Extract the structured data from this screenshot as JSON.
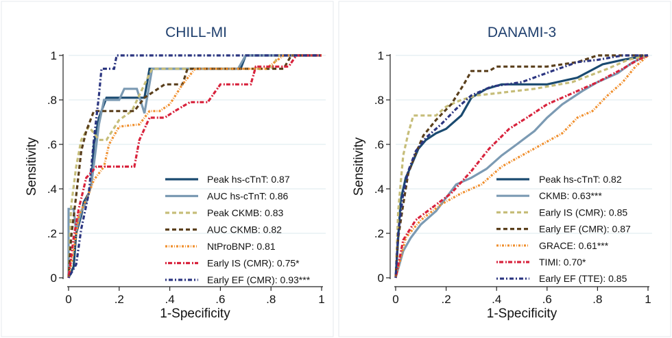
{
  "chart_data": [
    {
      "type": "line",
      "title": "CHILL-MI",
      "xlabel": "1-Specificity",
      "ylabel": "Sensitivity",
      "xlim": [
        0,
        1
      ],
      "ylim": [
        0,
        1
      ],
      "xticks": [
        "0",
        ".2",
        ".4",
        ".6",
        ".8",
        "1"
      ],
      "yticks": [
        "0",
        ".2",
        ".4",
        ".6",
        ".8",
        "1"
      ],
      "grid": "horizontal",
      "legend_position": "bottom-right",
      "series": [
        {
          "name": "Peak hs-cTnT: 0.87",
          "color": "#1a4a70",
          "dash": "solid",
          "points": [
            [
              0,
              0
            ],
            [
              0.02,
              0.05
            ],
            [
              0.03,
              0.2
            ],
            [
              0.05,
              0.28
            ],
            [
              0.06,
              0.34
            ],
            [
              0.08,
              0.38
            ],
            [
              0.09,
              0.42
            ],
            [
              0.1,
              0.6
            ],
            [
              0.12,
              0.72
            ],
            [
              0.15,
              0.81
            ],
            [
              0.19,
              0.81
            ],
            [
              0.22,
              0.81
            ],
            [
              0.25,
              0.81
            ],
            [
              0.3,
              0.81
            ],
            [
              0.32,
              0.94
            ],
            [
              0.55,
              0.94
            ],
            [
              0.58,
              0.94
            ],
            [
              0.68,
              0.94
            ],
            [
              0.7,
              1
            ],
            [
              1,
              1
            ]
          ]
        },
        {
          "name": "AUC hs-cTnT: 0.86",
          "color": "#7b9ab3",
          "dash": "solid",
          "points": [
            [
              0,
              0
            ],
            [
              0,
              0.31
            ],
            [
              0.02,
              0.31
            ],
            [
              0.03,
              0.21
            ],
            [
              0.05,
              0.3
            ],
            [
              0.07,
              0.34
            ],
            [
              0.09,
              0.42
            ],
            [
              0.12,
              0.69
            ],
            [
              0.14,
              0.8
            ],
            [
              0.2,
              0.8
            ],
            [
              0.22,
              0.85
            ],
            [
              0.27,
              0.85
            ],
            [
              0.3,
              0.74
            ],
            [
              0.33,
              0.94
            ],
            [
              0.67,
              0.94
            ],
            [
              0.7,
              1
            ],
            [
              1,
              1
            ]
          ]
        },
        {
          "name": "Peak CKMB: 0.83",
          "color": "#c6bd79",
          "dash": "6,4",
          "points": [
            [
              0,
              0
            ],
            [
              0.01,
              0.32
            ],
            [
              0.03,
              0.5
            ],
            [
              0.05,
              0.62
            ],
            [
              0.08,
              0.68
            ],
            [
              0.12,
              0.62
            ],
            [
              0.15,
              0.62
            ],
            [
              0.2,
              0.71
            ],
            [
              0.25,
              0.75
            ],
            [
              0.3,
              0.87
            ],
            [
              0.33,
              0.94
            ],
            [
              0.8,
              0.94
            ],
            [
              0.83,
              1
            ],
            [
              1,
              1
            ]
          ]
        },
        {
          "name": "AUC CKMB: 0.82",
          "color": "#5a3f1c",
          "dash": "6,4",
          "points": [
            [
              0,
              0
            ],
            [
              0.01,
              0.18
            ],
            [
              0.03,
              0.37
            ],
            [
              0.05,
              0.57
            ],
            [
              0.07,
              0.66
            ],
            [
              0.1,
              0.75
            ],
            [
              0.18,
              0.75
            ],
            [
              0.26,
              0.75
            ],
            [
              0.3,
              0.81
            ],
            [
              0.38,
              0.87
            ],
            [
              0.45,
              0.87
            ],
            [
              0.47,
              0.94
            ],
            [
              0.85,
              0.94
            ],
            [
              0.88,
              1
            ],
            [
              1,
              1
            ]
          ]
        },
        {
          "name": "NtProBNP: 0.81",
          "color": "#f0902f",
          "dash": "3,2,1,2",
          "points": [
            [
              0,
              0
            ],
            [
              0.02,
              0.12
            ],
            [
              0.04,
              0.28
            ],
            [
              0.07,
              0.35
            ],
            [
              0.1,
              0.44
            ],
            [
              0.14,
              0.5
            ],
            [
              0.16,
              0.6
            ],
            [
              0.2,
              0.68
            ],
            [
              0.28,
              0.69
            ],
            [
              0.32,
              0.75
            ],
            [
              0.36,
              0.75
            ],
            [
              0.4,
              0.78
            ],
            [
              0.45,
              0.87
            ],
            [
              0.5,
              0.94
            ],
            [
              0.78,
              0.94
            ],
            [
              0.85,
              1
            ],
            [
              1,
              1
            ]
          ]
        },
        {
          "name": "Early IS (CMR): 0.75*",
          "color": "#d8223c",
          "dash": "2,2,6,3",
          "points": [
            [
              0,
              0
            ],
            [
              0.02,
              0.18
            ],
            [
              0.04,
              0.31
            ],
            [
              0.07,
              0.45
            ],
            [
              0.11,
              0.5
            ],
            [
              0.18,
              0.5
            ],
            [
              0.26,
              0.5
            ],
            [
              0.28,
              0.62
            ],
            [
              0.32,
              0.72
            ],
            [
              0.38,
              0.72
            ],
            [
              0.42,
              0.75
            ],
            [
              0.48,
              0.79
            ],
            [
              0.55,
              0.79
            ],
            [
              0.6,
              0.87
            ],
            [
              0.72,
              0.87
            ],
            [
              0.74,
              0.95
            ],
            [
              0.87,
              0.95
            ],
            [
              0.9,
              1
            ],
            [
              1,
              1
            ]
          ]
        },
        {
          "name": "Early EF (CMR): 0.93***",
          "color": "#2b3580",
          "dash": "2,3,6,3",
          "points": [
            [
              0,
              0
            ],
            [
              0.03,
              0.06
            ],
            [
              0.05,
              0.22
            ],
            [
              0.08,
              0.38
            ],
            [
              0.1,
              0.62
            ],
            [
              0.12,
              0.82
            ],
            [
              0.13,
              0.94
            ],
            [
              0.18,
              0.94
            ],
            [
              0.19,
              1
            ],
            [
              1,
              1
            ]
          ]
        }
      ]
    },
    {
      "type": "line",
      "title": "DANAMI-3",
      "xlabel": "1-Specificity",
      "ylabel": "Sensitivity",
      "xlim": [
        0,
        1
      ],
      "ylim": [
        0,
        1
      ],
      "xticks": [
        "0",
        ".2",
        ".4",
        ".6",
        ".8",
        "1"
      ],
      "yticks": [
        "0",
        ".2",
        ".4",
        ".6",
        ".8",
        "1"
      ],
      "grid": "horizontal",
      "legend_position": "bottom-right",
      "series": [
        {
          "name": "Peak hs-cTnT: 0.82",
          "color": "#1a4a70",
          "dash": "solid",
          "points": [
            [
              0,
              0
            ],
            [
              0.01,
              0.18
            ],
            [
              0.02,
              0.35
            ],
            [
              0.04,
              0.45
            ],
            [
              0.06,
              0.5
            ],
            [
              0.09,
              0.58
            ],
            [
              0.12,
              0.62
            ],
            [
              0.16,
              0.65
            ],
            [
              0.2,
              0.67
            ],
            [
              0.26,
              0.73
            ],
            [
              0.3,
              0.81
            ],
            [
              0.36,
              0.85
            ],
            [
              0.42,
              0.87
            ],
            [
              0.6,
              0.87
            ],
            [
              0.72,
              0.9
            ],
            [
              0.82,
              0.96
            ],
            [
              0.9,
              0.98
            ],
            [
              1,
              1
            ]
          ]
        },
        {
          "name": "CKMB: 0.63***",
          "color": "#7b9ab3",
          "dash": "solid",
          "points": [
            [
              0,
              0
            ],
            [
              0.03,
              0.12
            ],
            [
              0.06,
              0.18
            ],
            [
              0.1,
              0.24
            ],
            [
              0.16,
              0.3
            ],
            [
              0.24,
              0.42
            ],
            [
              0.3,
              0.45
            ],
            [
              0.36,
              0.49
            ],
            [
              0.42,
              0.55
            ],
            [
              0.48,
              0.6
            ],
            [
              0.55,
              0.66
            ],
            [
              0.6,
              0.72
            ],
            [
              0.66,
              0.78
            ],
            [
              0.74,
              0.84
            ],
            [
              0.8,
              0.88
            ],
            [
              0.88,
              0.92
            ],
            [
              0.94,
              0.97
            ],
            [
              1,
              1
            ]
          ]
        },
        {
          "name": "Early IS (CMR): 0.85",
          "color": "#c6bd79",
          "dash": "6,4",
          "points": [
            [
              0,
              0
            ],
            [
              0.01,
              0.3
            ],
            [
              0.03,
              0.55
            ],
            [
              0.05,
              0.65
            ],
            [
              0.07,
              0.73
            ],
            [
              0.16,
              0.73
            ],
            [
              0.2,
              0.77
            ],
            [
              0.26,
              0.8
            ],
            [
              0.32,
              0.82
            ],
            [
              0.4,
              0.83
            ],
            [
              0.55,
              0.85
            ],
            [
              0.7,
              0.88
            ],
            [
              0.84,
              0.94
            ],
            [
              0.92,
              0.98
            ],
            [
              1,
              1
            ]
          ]
        },
        {
          "name": "Early EF (CMR): 0.87",
          "color": "#5a3f1c",
          "dash": "6,4",
          "points": [
            [
              0,
              0
            ],
            [
              0.01,
              0.18
            ],
            [
              0.03,
              0.33
            ],
            [
              0.05,
              0.47
            ],
            [
              0.08,
              0.56
            ],
            [
              0.11,
              0.64
            ],
            [
              0.16,
              0.71
            ],
            [
              0.22,
              0.78
            ],
            [
              0.27,
              0.87
            ],
            [
              0.3,
              0.93
            ],
            [
              0.37,
              0.93
            ],
            [
              0.4,
              0.95
            ],
            [
              0.6,
              0.95
            ],
            [
              0.72,
              0.97
            ],
            [
              0.8,
              1
            ],
            [
              1,
              1
            ]
          ]
        },
        {
          "name": "GRACE: 0.61***",
          "color": "#f0902f",
          "dash": "3,2,1,2",
          "points": [
            [
              0,
              0
            ],
            [
              0.04,
              0.18
            ],
            [
              0.1,
              0.26
            ],
            [
              0.18,
              0.33
            ],
            [
              0.26,
              0.38
            ],
            [
              0.34,
              0.42
            ],
            [
              0.42,
              0.5
            ],
            [
              0.5,
              0.55
            ],
            [
              0.58,
              0.6
            ],
            [
              0.66,
              0.65
            ],
            [
              0.72,
              0.72
            ],
            [
              0.78,
              0.75
            ],
            [
              0.84,
              0.82
            ],
            [
              0.9,
              0.88
            ],
            [
              0.95,
              0.95
            ],
            [
              1,
              1
            ]
          ]
        },
        {
          "name": "TIMI: 0.70*",
          "color": "#d8223c",
          "dash": "2,2,6,3",
          "points": [
            [
              0,
              0
            ],
            [
              0.03,
              0.17
            ],
            [
              0.08,
              0.26
            ],
            [
              0.15,
              0.32
            ],
            [
              0.22,
              0.38
            ],
            [
              0.3,
              0.48
            ],
            [
              0.37,
              0.58
            ],
            [
              0.45,
              0.67
            ],
            [
              0.52,
              0.72
            ],
            [
              0.6,
              0.78
            ],
            [
              0.7,
              0.83
            ],
            [
              0.8,
              0.88
            ],
            [
              0.9,
              0.94
            ],
            [
              0.96,
              0.98
            ],
            [
              1,
              1
            ]
          ]
        },
        {
          "name": "Early EF (TTE): 0.85",
          "color": "#2b3580",
          "dash": "2,3,6,3",
          "points": [
            [
              0,
              0
            ],
            [
              0.01,
              0.2
            ],
            [
              0.03,
              0.38
            ],
            [
              0.05,
              0.48
            ],
            [
              0.08,
              0.57
            ],
            [
              0.12,
              0.63
            ],
            [
              0.18,
              0.69
            ],
            [
              0.24,
              0.76
            ],
            [
              0.3,
              0.82
            ],
            [
              0.38,
              0.86
            ],
            [
              0.5,
              0.88
            ],
            [
              0.62,
              0.93
            ],
            [
              0.72,
              0.97
            ],
            [
              0.8,
              0.98
            ],
            [
              0.9,
              1
            ],
            [
              1,
              1
            ]
          ]
        }
      ]
    }
  ]
}
